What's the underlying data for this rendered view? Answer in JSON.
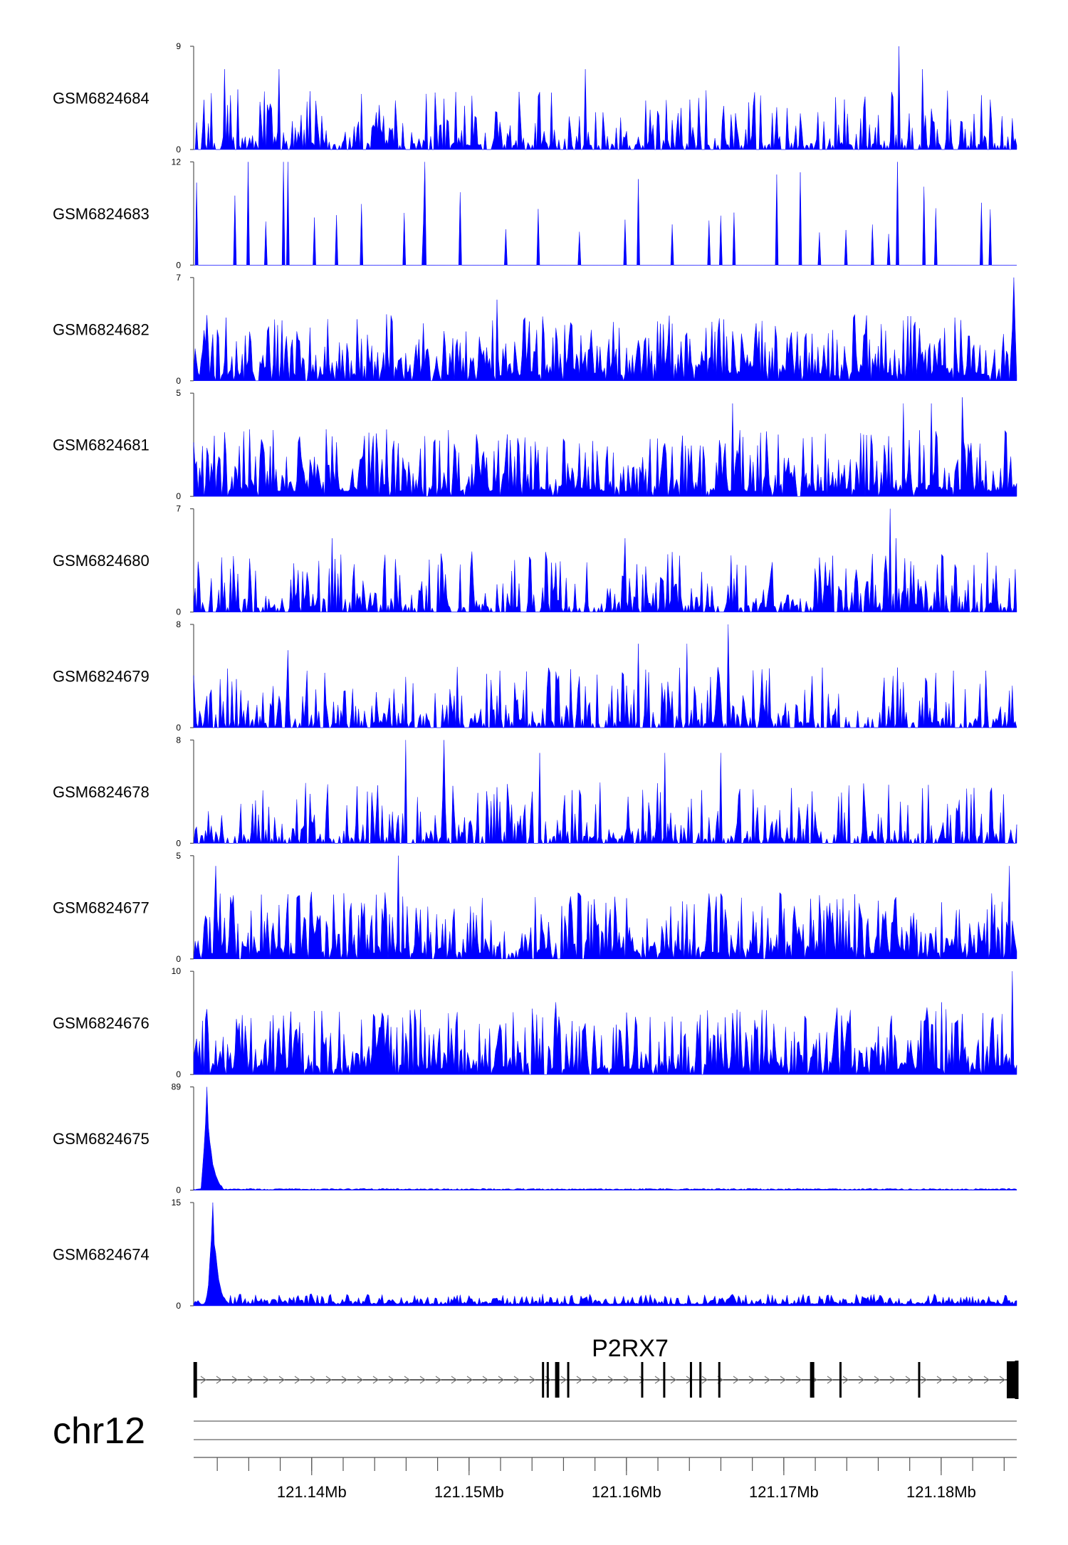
{
  "chart_data": {
    "type": "area",
    "genome": {
      "chromosome": "chr12",
      "region_start_mb": 121.1325,
      "region_end_mb": 121.1848,
      "axis_ticks_mb": [
        121.14,
        121.15,
        121.16,
        121.17,
        121.18
      ],
      "axis_tick_labels": [
        "121.14Mb",
        "121.15Mb",
        "121.16Mb",
        "121.17Mb",
        "121.18Mb"
      ],
      "minor_tick_step_mb": 0.002
    },
    "tracks": [
      {
        "name": "GSM6824684",
        "ymin": 0,
        "ymax": 9,
        "ymin_label": "0",
        "ymax_label": "9",
        "style": "sparse-peaks",
        "seed": 684,
        "peaks": [
          [
            121.1574,
            7.0
          ],
          [
            121.1773,
            9.0
          ],
          [
            121.1788,
            7.0
          ],
          [
            121.1379,
            7.0
          ],
          [
            121.1345,
            7.0
          ]
        ]
      },
      {
        "name": "GSM6824683",
        "ymin": 0,
        "ymax": 12,
        "ymin_label": "0",
        "ymax_label": "12",
        "style": "triangles",
        "seed": 683,
        "peaks": [
          [
            121.136,
            12.0
          ],
          [
            121.1382,
            12.0
          ],
          [
            121.1385,
            12.0
          ],
          [
            121.1472,
            12.0
          ],
          [
            121.1608,
            10.0
          ],
          [
            121.1772,
            12.0
          ]
        ]
      },
      {
        "name": "GSM6824682",
        "ymin": 0,
        "ymax": 7,
        "ymin_label": "0",
        "ymax_label": "7",
        "style": "dense",
        "seed": 682,
        "peaks": [
          [
            121.1518,
            5.5
          ],
          [
            121.1846,
            7.0
          ]
        ]
      },
      {
        "name": "GSM6824681",
        "ymin": 0,
        "ymax": 5,
        "ymin_label": "0",
        "ymax_label": "5",
        "style": "dense",
        "seed": 681,
        "peaks": [
          [
            121.1667,
            4.5
          ],
          [
            121.1776,
            4.5
          ],
          [
            121.1794,
            4.5
          ],
          [
            121.1813,
            4.8
          ]
        ]
      },
      {
        "name": "GSM6824680",
        "ymin": 0,
        "ymax": 7,
        "ymin_label": "0",
        "ymax_label": "7",
        "style": "sparse-peaks",
        "seed": 680,
        "peaks": [
          [
            121.1768,
            7.0
          ],
          [
            121.1413,
            5.0
          ],
          [
            121.1599,
            5.0
          ],
          [
            121.1771,
            5.0
          ]
        ]
      },
      {
        "name": "GSM6824679",
        "ymin": 0,
        "ymax": 8,
        "ymin_label": "0",
        "ymax_label": "8",
        "style": "sparse-peaks",
        "seed": 679,
        "peaks": [
          [
            121.1665,
            8.0
          ],
          [
            121.1385,
            6.0
          ],
          [
            121.1608,
            6.5
          ],
          [
            121.1638,
            6.5
          ]
        ]
      },
      {
        "name": "GSM6824678",
        "ymin": 0,
        "ymax": 8,
        "ymin_label": "0",
        "ymax_label": "8",
        "style": "sparse-peaks",
        "seed": 678,
        "peaks": [
          [
            121.146,
            8.0
          ],
          [
            121.1484,
            8.0
          ],
          [
            121.1545,
            7.0
          ],
          [
            121.1624,
            7.0
          ],
          [
            121.166,
            7.0
          ]
        ]
      },
      {
        "name": "GSM6824677",
        "ymin": 0,
        "ymax": 5,
        "ymin_label": "0",
        "ymax_label": "5",
        "style": "dense",
        "seed": 677,
        "peaks": [
          [
            121.1339,
            4.5
          ],
          [
            121.1455,
            5.0
          ],
          [
            121.1843,
            4.5
          ]
        ]
      },
      {
        "name": "GSM6824676",
        "ymin": 0,
        "ymax": 10,
        "ymin_label": "0",
        "ymax_label": "10",
        "style": "dense",
        "seed": 676,
        "peaks": [
          [
            121.1845,
            10.0
          ],
          [
            121.1555,
            7.0
          ],
          [
            121.16,
            6.0
          ],
          [
            121.18,
            7.0
          ]
        ]
      },
      {
        "name": "GSM6824675",
        "ymin": 0,
        "ymax": 89,
        "ymin_label": "0",
        "ymax_label": "89",
        "style": "flat-spike",
        "seed": 675,
        "peaks": [
          [
            121.1333,
            89.0
          ]
        ]
      },
      {
        "name": "GSM6824674",
        "ymin": 0,
        "ymax": 15,
        "ymin_label": "0",
        "ymax_label": "15",
        "style": "flat-spike",
        "seed": 674,
        "peaks": [
          [
            121.1337,
            15.0
          ]
        ]
      }
    ],
    "gene": {
      "name": "P2RX7",
      "strand": "+",
      "start_mb": 121.1325,
      "end_mb": 121.1848,
      "exons_mb": [
        121.1326,
        121.1547,
        121.155,
        121.1556,
        121.1563,
        121.161,
        121.1624,
        121.1641,
        121.1647,
        121.1659,
        121.1718,
        121.1736,
        121.1786,
        121.1848
      ]
    },
    "colors": {
      "signal": "#0000ff",
      "axis": "#555555",
      "gene": "#000000",
      "ideogram_line": "#666666"
    }
  }
}
